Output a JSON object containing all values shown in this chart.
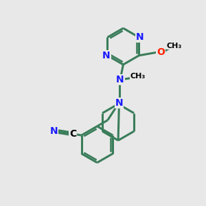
{
  "background_color": "#e8e8e8",
  "bond_color": "#3a7d5a",
  "bond_width": 2.2,
  "N_color": "#1a1aff",
  "O_color": "#ff2200",
  "C_color": "#000000",
  "font_size": 10,
  "fig_size": [
    3.0,
    3.0
  ],
  "dpi": 100,
  "xlim": [
    0,
    10
  ],
  "ylim": [
    0,
    10
  ]
}
